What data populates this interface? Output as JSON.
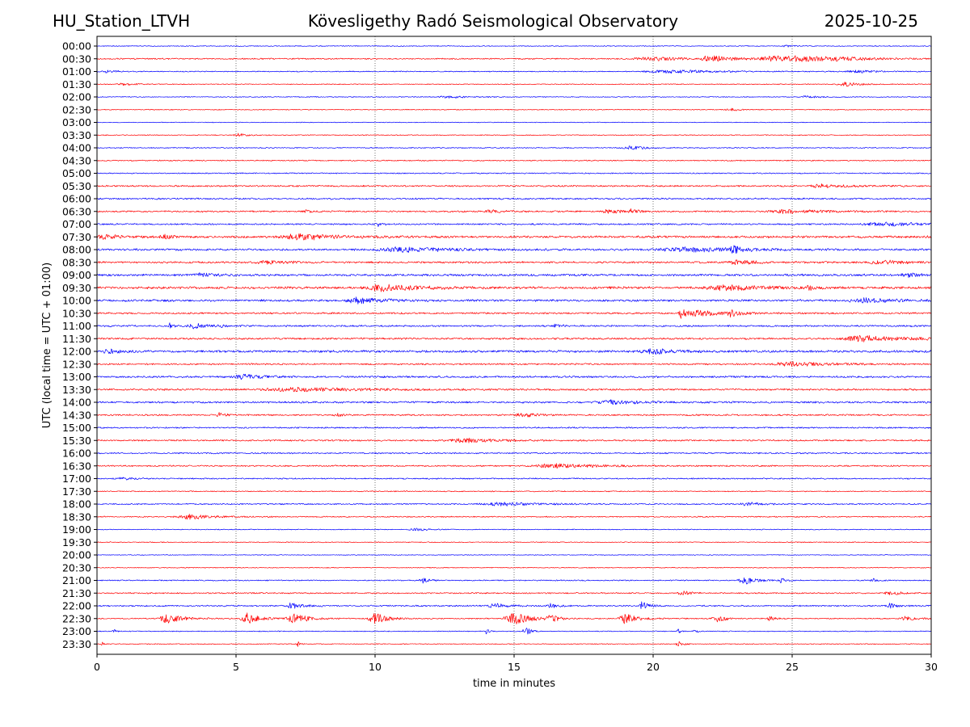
{
  "header": {
    "station": "HU_Station_LTVH",
    "observatory": "Kövesligethy Radó Seismological Observatory",
    "date": "2025-10-25"
  },
  "chart_data": {
    "type": "line",
    "title": "Kövesligethy Radó Seismological Observatory",
    "xlabel": "time in minutes",
    "ylabel": "UTC (local time = UTC + 01:00)",
    "xlim": [
      0,
      30
    ],
    "x_ticks": [
      "0",
      "5",
      "10",
      "15",
      "20",
      "25",
      "30"
    ],
    "x_tick_values": [
      0,
      5,
      10,
      15,
      20,
      25,
      30
    ],
    "grid": "vertical dotted at x ticks",
    "colors": {
      "even_rows": "#0000ff",
      "odd_rows": "#ff0000"
    },
    "rows": [
      {
        "label": "00:00",
        "noise": 0.6,
        "events": [
          [
            24.8,
            0.3,
            1.2
          ]
        ]
      },
      {
        "label": "00:30",
        "noise": 0.9,
        "events": [
          [
            20.0,
            1.5,
            2.2
          ],
          [
            22.1,
            0.8,
            4.0
          ],
          [
            24.4,
            1.2,
            3.8
          ],
          [
            25.2,
            0.6,
            3.0
          ],
          [
            26.6,
            1.8,
            2.0
          ]
        ]
      },
      {
        "label": "01:00",
        "noise": 0.7,
        "events": [
          [
            0.3,
            0.5,
            1.5
          ],
          [
            20.6,
            2.0,
            2.0
          ],
          [
            27.3,
            0.8,
            1.5
          ]
        ]
      },
      {
        "label": "01:30",
        "noise": 0.6,
        "events": [
          [
            0.9,
            0.5,
            1.8
          ],
          [
            26.9,
            0.6,
            2.5
          ]
        ]
      },
      {
        "label": "02:00",
        "noise": 0.6,
        "events": [
          [
            12.6,
            0.8,
            1.5
          ],
          [
            25.5,
            0.7,
            1.2
          ]
        ]
      },
      {
        "label": "02:30",
        "noise": 0.6,
        "events": [
          [
            22.8,
            0.4,
            1.5
          ]
        ]
      },
      {
        "label": "03:00",
        "noise": 0.5,
        "events": []
      },
      {
        "label": "03:30",
        "noise": 0.6,
        "events": [
          [
            5.1,
            0.4,
            2.0
          ]
        ]
      },
      {
        "label": "04:00",
        "noise": 0.7,
        "events": [
          [
            19.2,
            0.6,
            2.2
          ]
        ]
      },
      {
        "label": "04:30",
        "noise": 0.8,
        "events": []
      },
      {
        "label": "05:00",
        "noise": 0.8,
        "events": []
      },
      {
        "label": "05:30",
        "noise": 1.1,
        "events": [
          [
            26.1,
            1.0,
            2.0
          ]
        ]
      },
      {
        "label": "06:00",
        "noise": 1.1,
        "events": []
      },
      {
        "label": "06:30",
        "noise": 1.1,
        "events": [
          [
            7.5,
            0.2,
            2.0
          ],
          [
            14.2,
            0.5,
            2.0
          ],
          [
            18.4,
            0.6,
            2.2
          ],
          [
            19.2,
            0.2,
            3.0
          ],
          [
            24.8,
            1.6,
            2.5
          ]
        ]
      },
      {
        "label": "07:00",
        "noise": 1.1,
        "events": [
          [
            10.1,
            0.2,
            2.5
          ],
          [
            28.3,
            1.6,
            2.2
          ]
        ]
      },
      {
        "label": "07:30",
        "noise": 1.6,
        "events": [
          [
            0.3,
            0.6,
            2.5
          ],
          [
            2.4,
            0.3,
            3.0
          ],
          [
            7.3,
            1.5,
            3.5
          ]
        ]
      },
      {
        "label": "08:00",
        "noise": 1.4,
        "events": [
          [
            11.0,
            2.0,
            2.6
          ],
          [
            21.2,
            2.5,
            2.4
          ],
          [
            22.9,
            0.3,
            4.0
          ]
        ]
      },
      {
        "label": "08:30",
        "noise": 1.3,
        "events": [
          [
            6.0,
            1.0,
            2.0
          ],
          [
            23.0,
            0.8,
            2.2
          ],
          [
            28.2,
            0.8,
            3.0
          ]
        ]
      },
      {
        "label": "09:00",
        "noise": 1.5,
        "events": [
          [
            3.7,
            0.5,
            2.5
          ],
          [
            29.2,
            0.8,
            2.0
          ]
        ]
      },
      {
        "label": "09:30",
        "noise": 1.7,
        "events": [
          [
            10.3,
            1.4,
            4.0
          ],
          [
            22.6,
            1.5,
            3.0
          ],
          [
            25.6,
            0.2,
            3.0
          ]
        ]
      },
      {
        "label": "10:00",
        "noise": 1.5,
        "events": [
          [
            9.4,
            1.0,
            3.6
          ],
          [
            27.6,
            1.2,
            2.6
          ]
        ]
      },
      {
        "label": "10:30",
        "noise": 1.2,
        "events": [
          [
            21.0,
            0.2,
            6.0
          ],
          [
            21.6,
            1.0,
            3.5
          ],
          [
            22.8,
            0.3,
            3.5
          ]
        ]
      },
      {
        "label": "11:00",
        "noise": 1.2,
        "events": [
          [
            2.6,
            0.2,
            3.5
          ],
          [
            3.5,
            0.5,
            3.0
          ],
          [
            4.4,
            0.1,
            3.5
          ],
          [
            16.5,
            0.2,
            3.0
          ]
        ]
      },
      {
        "label": "11:30",
        "noise": 1.3,
        "events": [
          [
            27.6,
            1.8,
            3.5
          ]
        ]
      },
      {
        "label": "12:00",
        "noise": 1.6,
        "events": [
          [
            0.4,
            0.5,
            2.5
          ],
          [
            20.0,
            0.9,
            3.0
          ]
        ]
      },
      {
        "label": "12:30",
        "noise": 1.1,
        "events": [
          [
            25.0,
            1.5,
            2.8
          ]
        ]
      },
      {
        "label": "13:00",
        "noise": 1.3,
        "events": [
          [
            5.3,
            0.8,
            3.0
          ]
        ]
      },
      {
        "label": "13:30",
        "noise": 1.3,
        "events": [
          [
            7.2,
            2.5,
            2.2
          ]
        ]
      },
      {
        "label": "14:00",
        "noise": 1.3,
        "events": [
          [
            18.5,
            1.2,
            2.2
          ]
        ]
      },
      {
        "label": "14:30",
        "noise": 1.1,
        "events": [
          [
            4.4,
            0.2,
            3.0
          ],
          [
            8.6,
            0.2,
            2.5
          ],
          [
            15.3,
            0.5,
            3.0
          ]
        ]
      },
      {
        "label": "15:00",
        "noise": 1.0,
        "events": []
      },
      {
        "label": "15:30",
        "noise": 1.1,
        "events": [
          [
            13.3,
            1.2,
            2.5
          ]
        ]
      },
      {
        "label": "16:00",
        "noise": 1.0,
        "events": []
      },
      {
        "label": "16:30",
        "noise": 1.0,
        "events": [
          [
            16.4,
            1.8,
            2.5
          ]
        ]
      },
      {
        "label": "17:00",
        "noise": 0.9,
        "events": [
          [
            0.9,
            0.6,
            1.5
          ]
        ]
      },
      {
        "label": "17:30",
        "noise": 0.7,
        "events": []
      },
      {
        "label": "18:00",
        "noise": 0.9,
        "events": [
          [
            14.5,
            1.5,
            2.0
          ],
          [
            23.4,
            0.6,
            2.0
          ]
        ]
      },
      {
        "label": "18:30",
        "noise": 0.8,
        "events": [
          [
            3.3,
            1.0,
            3.0
          ]
        ]
      },
      {
        "label": "19:00",
        "noise": 0.6,
        "events": [
          [
            11.5,
            0.6,
            1.4
          ]
        ]
      },
      {
        "label": "19:30",
        "noise": 0.6,
        "events": []
      },
      {
        "label": "20:00",
        "noise": 0.5,
        "events": []
      },
      {
        "label": "20:30",
        "noise": 0.6,
        "events": []
      },
      {
        "label": "21:00",
        "noise": 0.8,
        "events": [
          [
            11.7,
            0.25,
            3.5
          ],
          [
            23.3,
            0.5,
            5.0
          ],
          [
            24.6,
            0.2,
            3.0
          ],
          [
            27.9,
            0.2,
            2.5
          ]
        ]
      },
      {
        "label": "21:30",
        "noise": 0.9,
        "events": [
          [
            21.0,
            0.3,
            3.5
          ],
          [
            28.5,
            0.5,
            2.5
          ]
        ]
      },
      {
        "label": "22:00",
        "noise": 1.0,
        "events": [
          [
            7.0,
            0.4,
            4.0
          ],
          [
            14.3,
            0.5,
            3.0
          ],
          [
            16.3,
            0.3,
            3.5
          ],
          [
            19.6,
            0.3,
            5.0
          ],
          [
            28.5,
            0.3,
            3.0
          ]
        ]
      },
      {
        "label": "22:30",
        "noise": 0.8,
        "events": [
          [
            2.5,
            0.6,
            6.0
          ],
          [
            5.4,
            0.5,
            7.0
          ],
          [
            7.1,
            0.6,
            6.0
          ],
          [
            10.0,
            0.5,
            7.0
          ],
          [
            15.0,
            0.8,
            7.0
          ],
          [
            16.3,
            0.3,
            4.0
          ],
          [
            19.0,
            0.5,
            6.5
          ],
          [
            22.3,
            0.4,
            4.0
          ],
          [
            24.2,
            0.2,
            3.0
          ],
          [
            29.1,
            0.5,
            2.5
          ]
        ]
      },
      {
        "label": "23:00",
        "noise": 0.6,
        "events": [
          [
            0.6,
            0.1,
            5.0
          ],
          [
            14.0,
            0.1,
            3.5
          ],
          [
            15.4,
            0.2,
            6.0
          ],
          [
            20.9,
            0.1,
            3.0
          ],
          [
            21.5,
            0.1,
            3.0
          ]
        ]
      },
      {
        "label": "23:30",
        "noise": 0.6,
        "events": [
          [
            0.2,
            0.1,
            2.0
          ],
          [
            7.2,
            0.1,
            4.5
          ],
          [
            20.9,
            0.2,
            3.5
          ]
        ]
      }
    ]
  }
}
